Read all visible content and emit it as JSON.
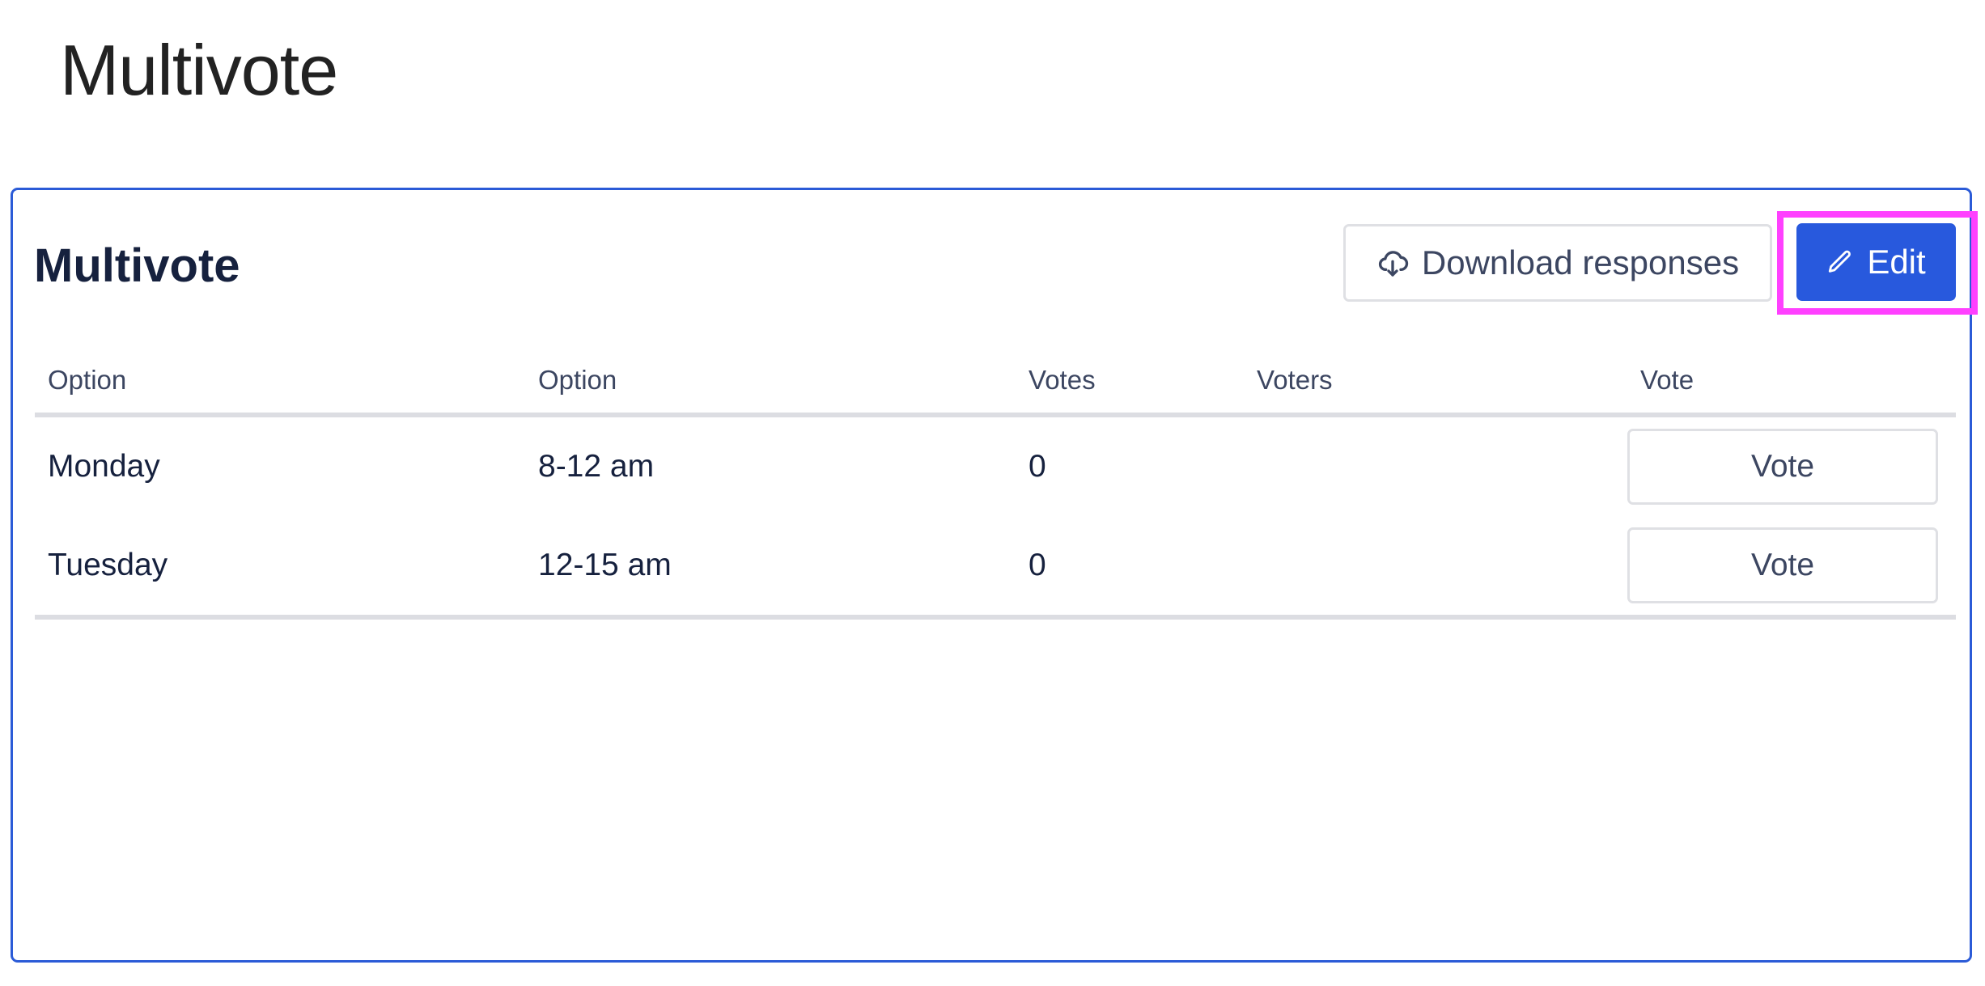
{
  "page": {
    "title": "Multivote"
  },
  "card": {
    "title": "Multivote",
    "download_label": "Download responses",
    "edit_label": "Edit",
    "accent_color": "#2859dd",
    "highlight_color": "#ff40ff"
  },
  "table": {
    "headers": [
      "Option",
      "Option",
      "Votes",
      "Voters",
      "Vote"
    ],
    "rows": [
      {
        "option1": "Monday",
        "option2": "8-12 am",
        "votes": "0",
        "voters": "",
        "vote_label": "Vote"
      },
      {
        "option1": "Tuesday",
        "option2": "12-15 am",
        "votes": "0",
        "voters": "",
        "vote_label": "Vote"
      }
    ]
  },
  "icons": {
    "download": "cloud-download-icon",
    "edit": "pencil-icon"
  }
}
